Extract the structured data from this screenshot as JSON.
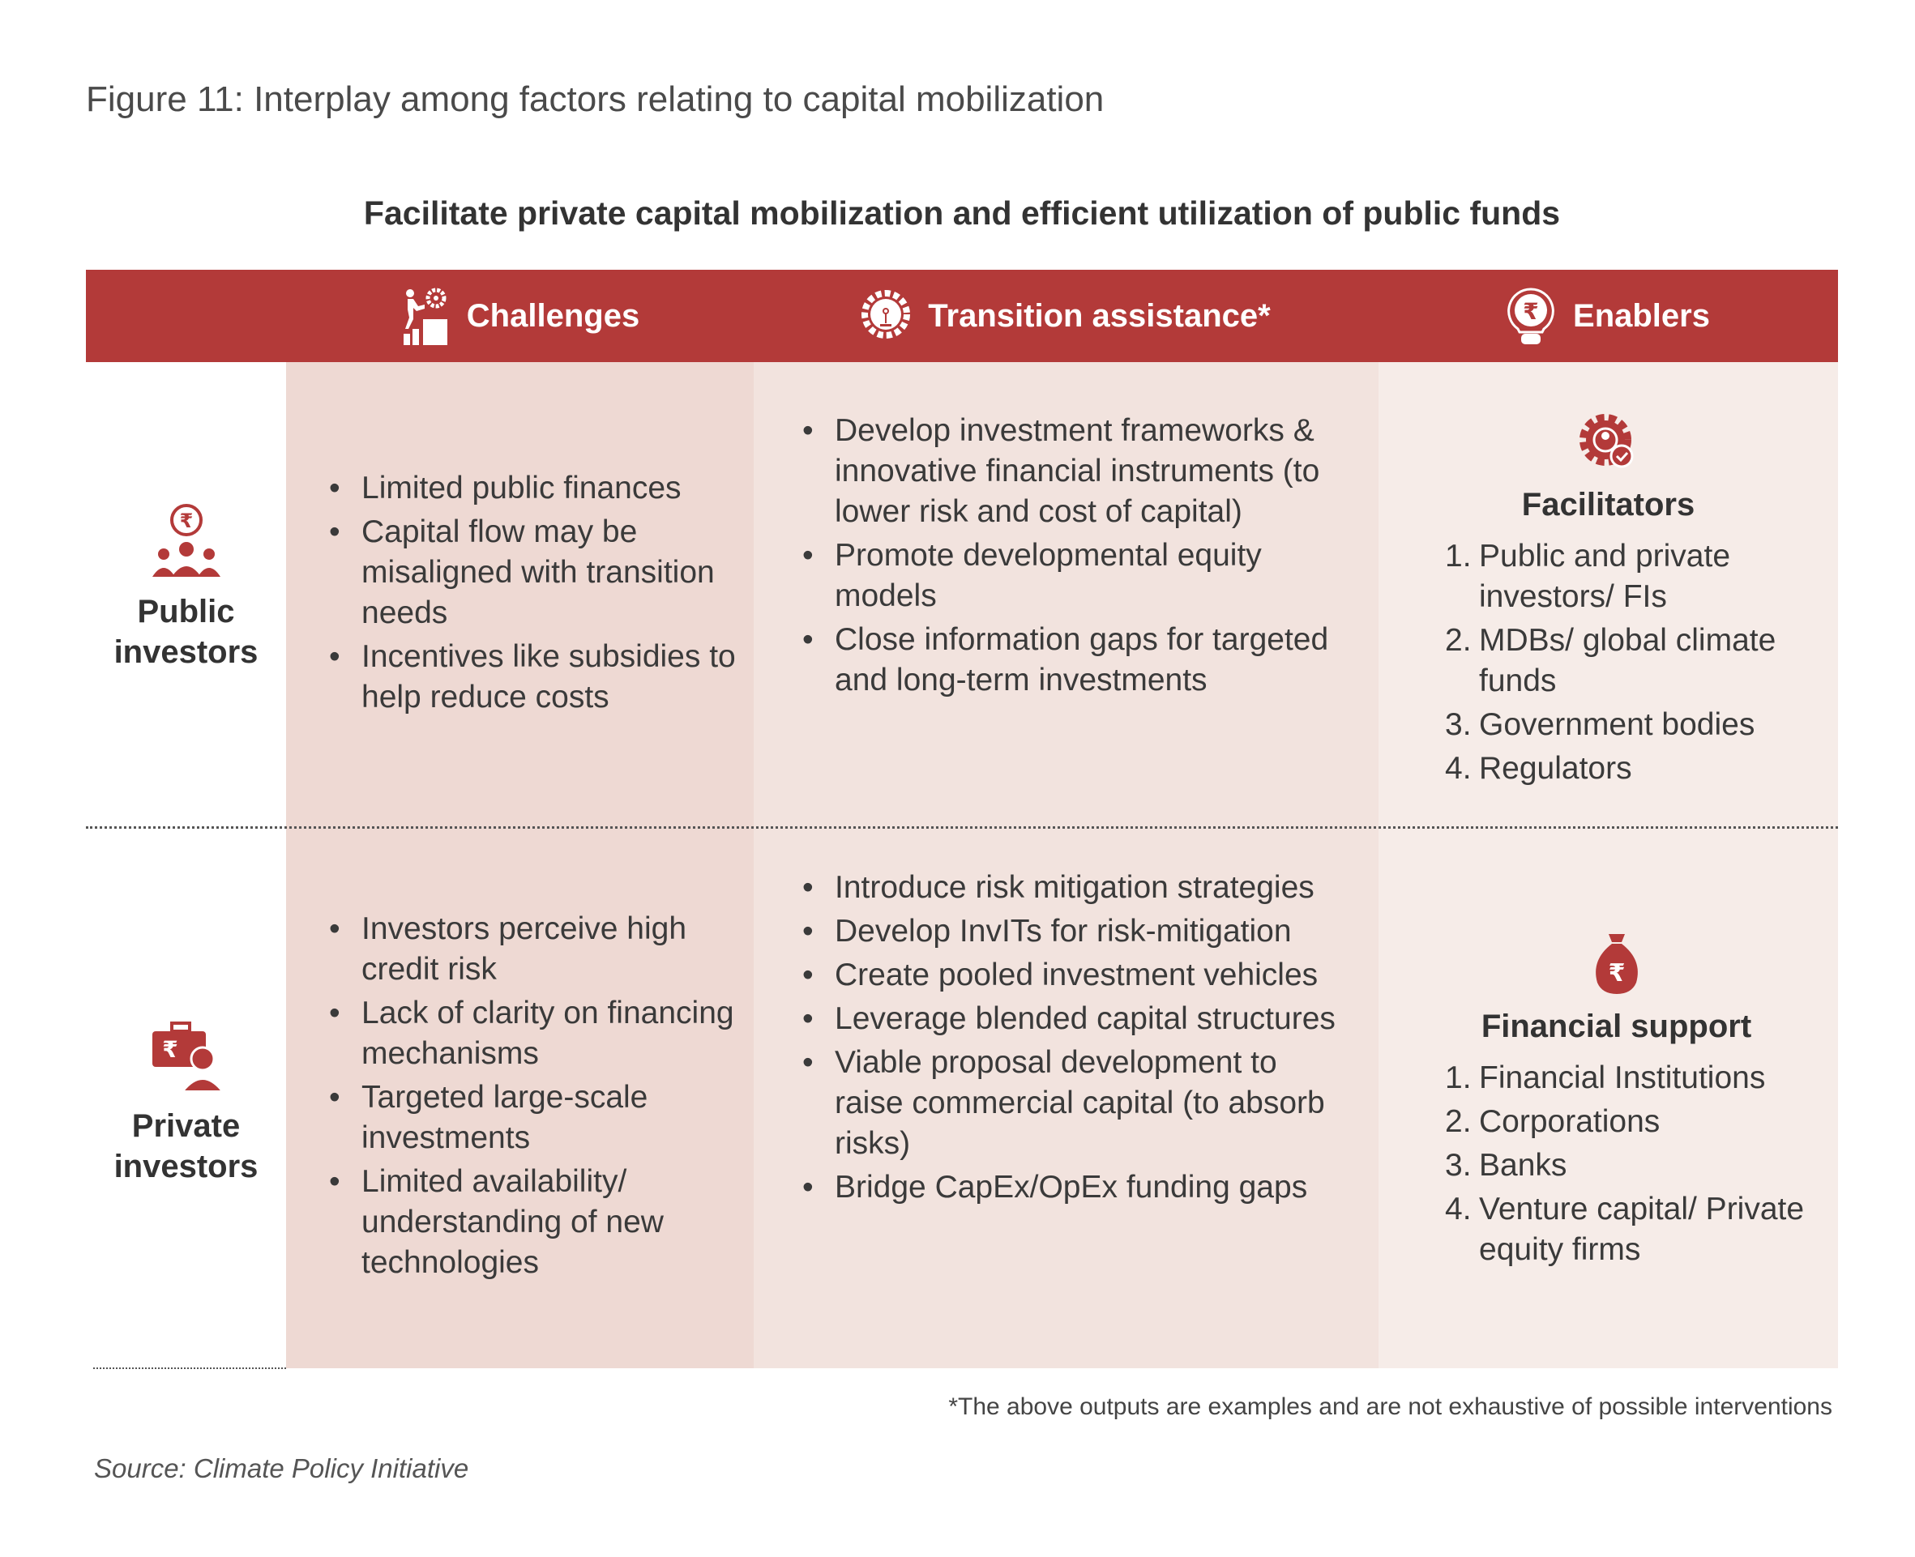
{
  "figure_title": "Figure 11: Interplay among factors relating to capital mobilization",
  "subtitle": "Facilitate private capital mobilization and efficient utilization of public funds",
  "header": {
    "challenges": "Challenges",
    "transition": "Transition assistance*",
    "enablers": "Enablers"
  },
  "rows": {
    "public": {
      "label_1": "Public",
      "label_2": "investors",
      "challenges": [
        "Limited public finances",
        "Capital flow may be misaligned with transition needs",
        "Incentives like subsidies to help reduce costs"
      ],
      "transition": [
        "Develop investment frameworks & innovative financial instruments (to lower risk and cost of capital)",
        "Promote developmental equity models",
        "Close information gaps for targeted and long-term investments"
      ],
      "enablers_title": "Facilitators",
      "enablers": [
        {
          "n": "1.",
          "t": "Public and private investors/ FIs"
        },
        {
          "n": "2.",
          "t": "MDBs/ global climate funds"
        },
        {
          "n": "3.",
          "t": "Government bodies"
        },
        {
          "n": "4.",
          "t": "Regulators"
        }
      ]
    },
    "private": {
      "label_1": "Private",
      "label_2": "investors",
      "challenges": [
        "Investors perceive high credit risk",
        "Lack of clarity on financing mechanisms",
        "Targeted large-scale investments",
        "Limited availability/ understanding of new technologies"
      ],
      "transition": [
        "Introduce risk mitigation strategies",
        "Develop InvITs for risk-mitigation",
        "Create pooled investment vehicles",
        "Leverage blended capital structures",
        "Viable proposal development to raise commercial capital (to absorb risks)",
        "Bridge CapEx/OpEx funding gaps"
      ],
      "enablers_title": "Financial support",
      "enablers": [
        {
          "n": "1.",
          "t": "Financial Institutions"
        },
        {
          "n": "2.",
          "t": "Corporations"
        },
        {
          "n": "3.",
          "t": "Banks"
        },
        {
          "n": "4.",
          "t": "Venture capital/ Private equity firms"
        }
      ]
    }
  },
  "footnote": "*The above outputs are examples and are not exhaustive of possible interventions",
  "source": "Source: Climate Policy Initiative",
  "colors": {
    "accent": "#b33a39",
    "challenges_bg": "#eed9d3",
    "transition_bg": "#f2e3de",
    "enablers_bg": "#f6ece8"
  }
}
